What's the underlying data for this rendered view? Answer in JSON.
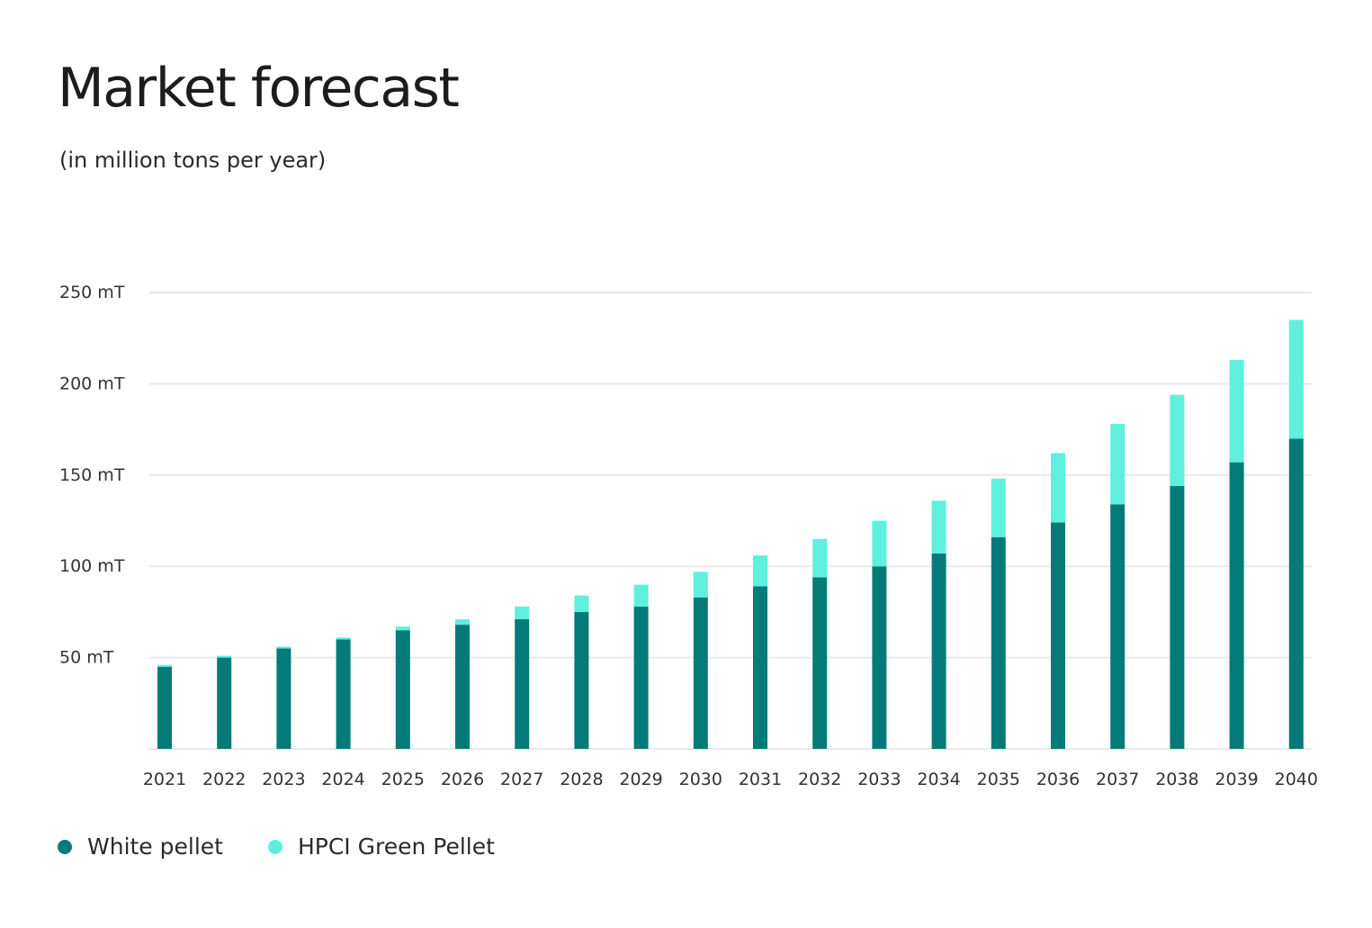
{
  "header": {
    "title": "Market forecast",
    "subtitle": "(in million tons per year)"
  },
  "colors": {
    "white_pellet": "#047b78",
    "green_pellet": "#5ef0dc",
    "grid": "#e9e9e9"
  },
  "chart_data": {
    "type": "bar",
    "stacked": true,
    "title": "Market forecast",
    "subtitle": "(in million tons per year)",
    "categories": [
      "2021",
      "2022",
      "2023",
      "2024",
      "2025",
      "2026",
      "2027",
      "2028",
      "2029",
      "2030",
      "2031",
      "2032",
      "2033",
      "2034",
      "2035",
      "2036",
      "2037",
      "2038",
      "2039",
      "2040"
    ],
    "series": [
      {
        "name": "White pellet",
        "values": [
          45,
          50,
          55,
          60,
          65,
          68,
          71,
          75,
          78,
          83,
          89,
          94,
          100,
          107,
          116,
          124,
          134,
          144,
          157,
          170
        ]
      },
      {
        "name": "HPCI Green Pellet",
        "values": [
          1,
          1,
          1,
          1,
          2,
          3,
          7,
          9,
          12,
          14,
          17,
          21,
          25,
          29,
          32,
          38,
          44,
          50,
          56,
          65
        ]
      }
    ],
    "yticks": [
      50,
      100,
      150,
      200,
      250
    ],
    "ytick_labels": [
      "50 mT",
      "100 mT",
      "150 mT",
      "200 mT",
      "250 mT"
    ],
    "ylim": [
      0,
      250
    ],
    "grid": true,
    "legend_position": "bottom-left"
  }
}
